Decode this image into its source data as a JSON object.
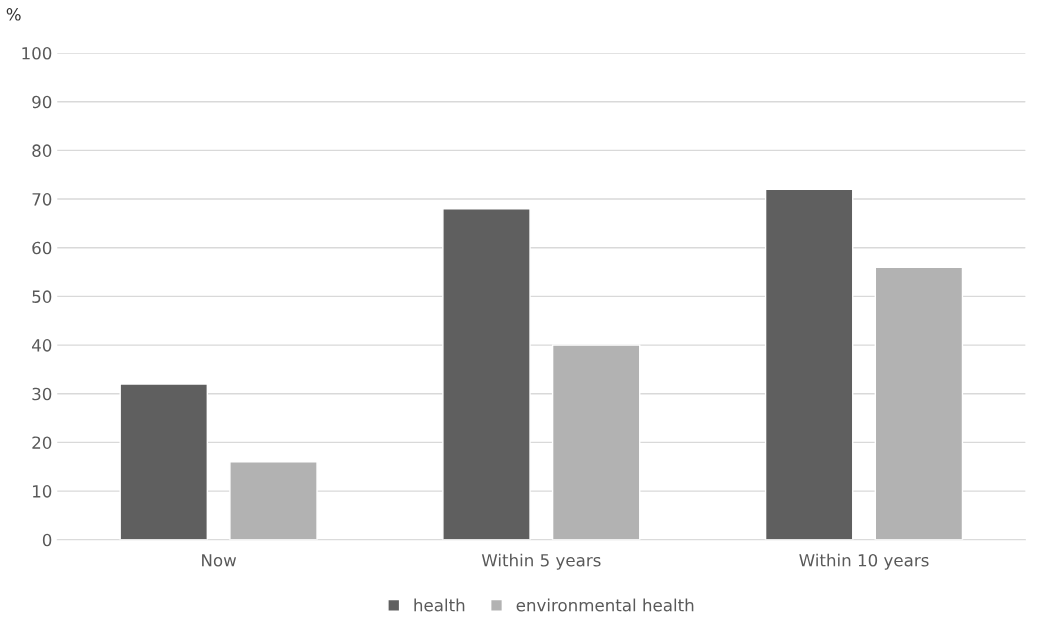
{
  "chart_data": {
    "type": "bar",
    "ylabel": "%",
    "categories": [
      "Now",
      "Within 5 years",
      "Within 10 years"
    ],
    "series": [
      {
        "name": "health",
        "color": "#5f5f5f",
        "values": [
          32,
          68,
          72
        ]
      },
      {
        "name": "environmental health",
        "color": "#b2b2b2",
        "values": [
          16,
          40,
          56
        ]
      }
    ],
    "ylim": [
      0,
      100
    ],
    "yticks": [
      0,
      10,
      20,
      30,
      40,
      50,
      60,
      70,
      80,
      90,
      100
    ],
    "grid": "y",
    "legend": "bottom"
  }
}
